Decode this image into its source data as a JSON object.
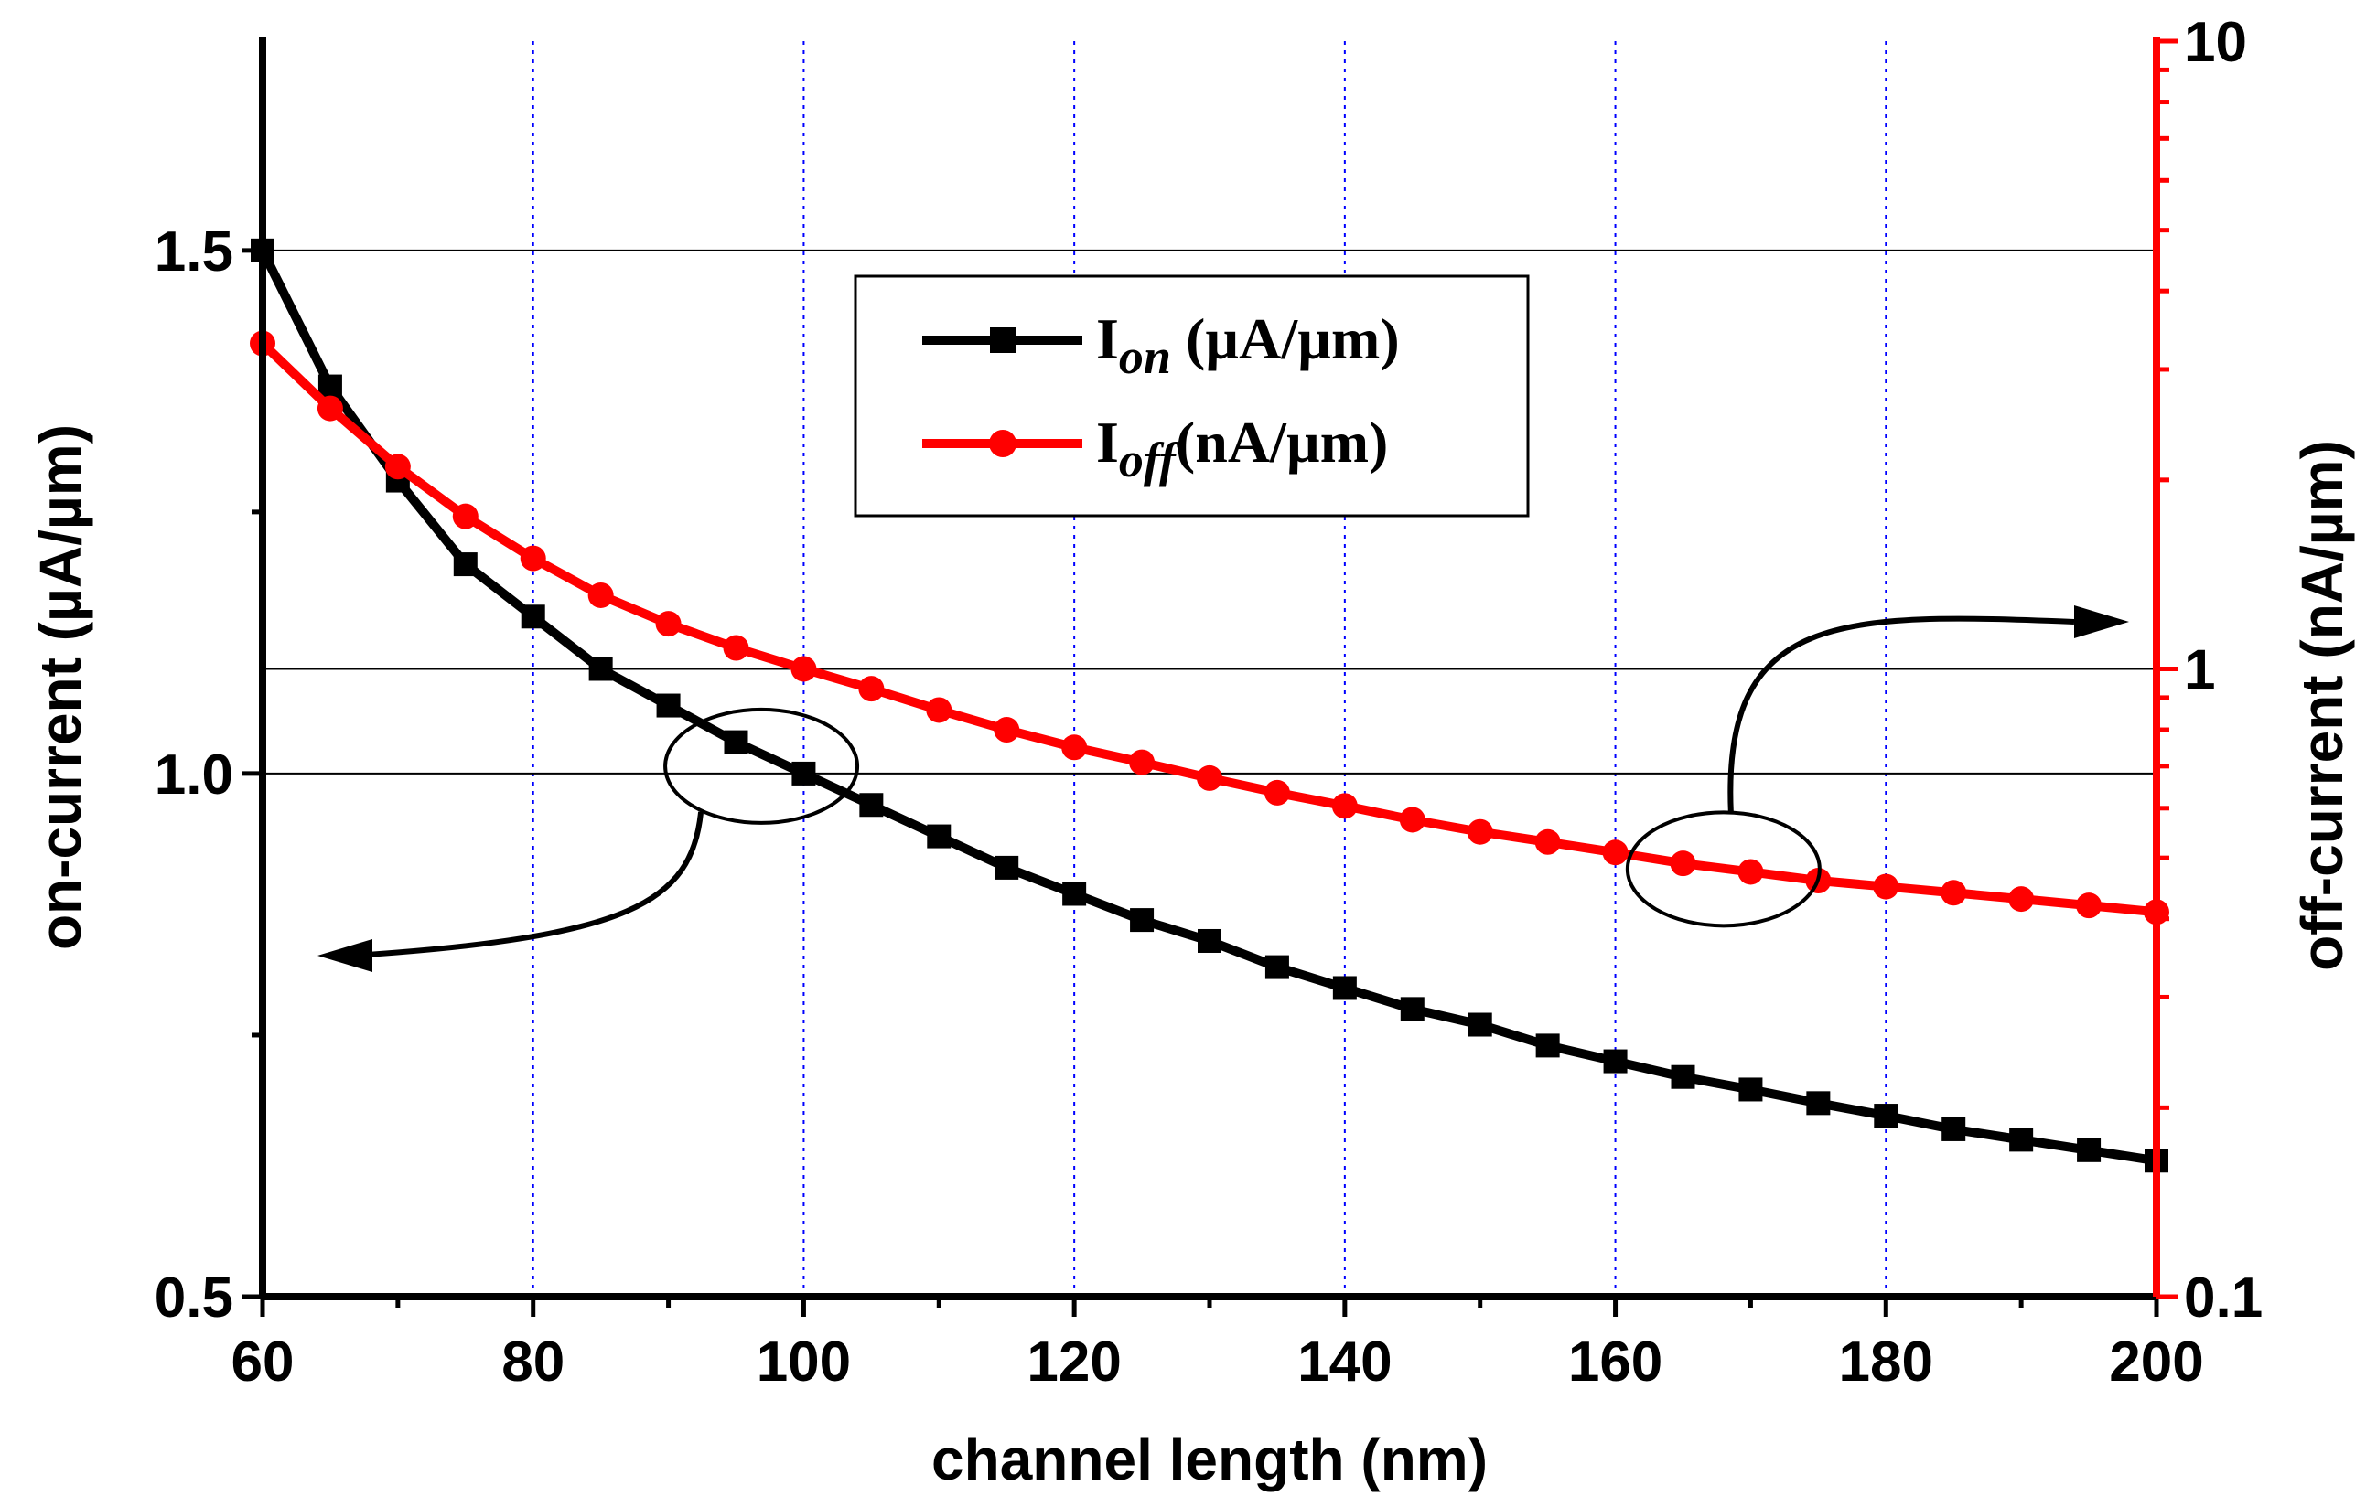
{
  "chart_data": {
    "type": "line",
    "title": "",
    "xlabel": "channel length (nm)",
    "ylabel_left": "on-current (µA/µm)",
    "ylabel_right": "off-current (nA/µm)",
    "xlim": [
      60,
      200
    ],
    "ylim_left": [
      0.5,
      1.7
    ],
    "ylim_right": [
      0.1,
      10
    ],
    "y_right_scale": "log",
    "x_ticks": [
      60,
      80,
      100,
      120,
      140,
      160,
      180,
      200
    ],
    "x_tick_labels": [
      "60",
      "80",
      "100",
      "120",
      "140",
      "160",
      "180",
      "200"
    ],
    "y_left_ticks": [
      0.5,
      1.0,
      1.5
    ],
    "y_left_tick_labels": [
      "0.5",
      "1.0",
      "1.5"
    ],
    "y_right_ticks": [
      0.1,
      1,
      10
    ],
    "y_right_tick_labels": [
      "0.1",
      "1",
      "10"
    ],
    "x_gridlines": [
      80,
      100,
      120,
      140,
      160,
      180
    ],
    "y_left_gridlines": [
      1.0,
      1.5
    ],
    "y_right_gridlines": [
      1
    ],
    "x": [
      60,
      65,
      70,
      75,
      80,
      85,
      90,
      95,
      100,
      105,
      110,
      115,
      120,
      125,
      130,
      135,
      140,
      145,
      150,
      155,
      160,
      165,
      170,
      175,
      180,
      185,
      190,
      195,
      200
    ],
    "series": [
      {
        "name": "I_on (µA/µm)",
        "label_main": "I",
        "label_sub": "on",
        "label_unit": " (µA/µm)",
        "axis": "left",
        "color": "#000000",
        "marker": "square",
        "values": [
          1.5,
          1.37,
          1.28,
          1.2,
          1.15,
          1.1,
          1.065,
          1.03,
          1.0,
          0.97,
          0.94,
          0.91,
          0.885,
          0.86,
          0.84,
          0.815,
          0.795,
          0.775,
          0.76,
          0.74,
          0.725,
          0.71,
          0.698,
          0.685,
          0.673,
          0.66,
          0.65,
          0.64,
          0.63
        ]
      },
      {
        "name": "I_off (nA/µm)",
        "label_main": "I",
        "label_sub": "off",
        "label_unit": "(nA/µm)",
        "axis": "right",
        "color": "#ff0000",
        "marker": "circle",
        "values": [
          3.3,
          2.6,
          2.1,
          1.75,
          1.5,
          1.31,
          1.18,
          1.08,
          1.0,
          0.93,
          0.86,
          0.8,
          0.75,
          0.71,
          0.67,
          0.635,
          0.605,
          0.575,
          0.55,
          0.53,
          0.51,
          0.49,
          0.475,
          0.46,
          0.45,
          0.44,
          0.43,
          0.42,
          0.41
        ]
      }
    ],
    "legend": {
      "position": "top-center"
    },
    "annotations": [
      {
        "type": "ellipse-arrow",
        "target_series": "I_on (µA/µm)",
        "points_to": "left-axis",
        "center_x": 97,
        "center_y_left": 1.0
      },
      {
        "type": "ellipse-arrow",
        "target_series": "I_off (nA/µm)",
        "points_to": "right-axis",
        "center_x": 168,
        "center_y_right": 0.48
      }
    ]
  }
}
